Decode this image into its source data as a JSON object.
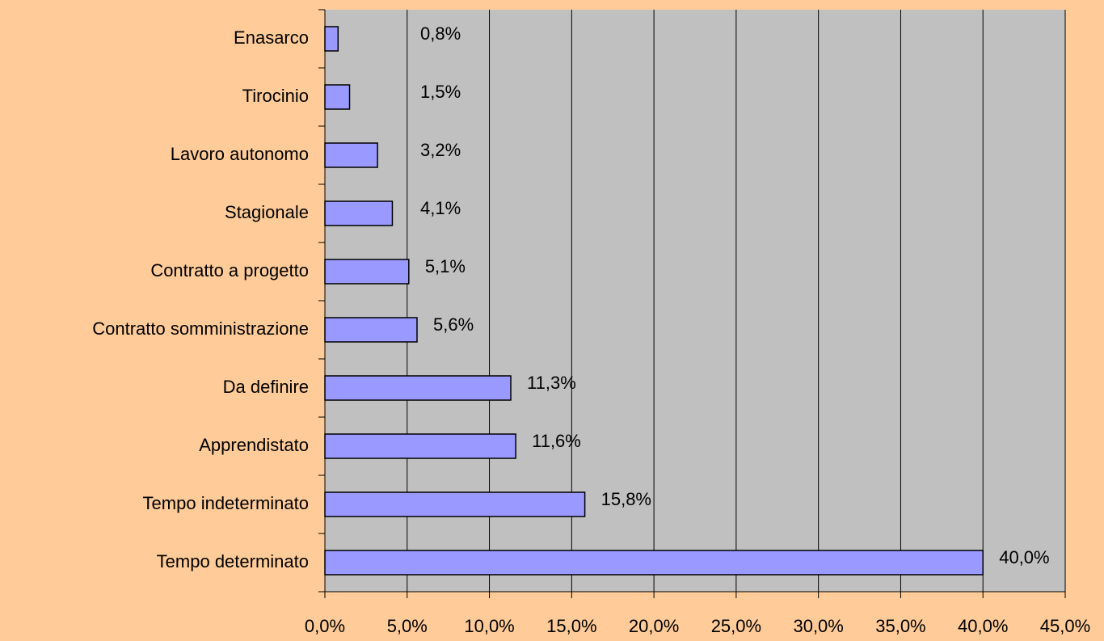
{
  "chart_data": {
    "type": "bar",
    "orientation": "horizontal",
    "categories": [
      "Enasarco",
      "Tirocinio",
      "Lavoro autonomo",
      "Stagionale",
      "Contratto a progetto",
      "Contratto somministrazione",
      "Da definire",
      "Apprendistato",
      "Tempo indeterminato",
      "Tempo determinato"
    ],
    "values": [
      0.8,
      1.5,
      3.2,
      4.1,
      5.1,
      5.6,
      11.3,
      11.6,
      15.8,
      40.0
    ],
    "value_labels": [
      "0,8%",
      "1,5%",
      "3,2%",
      "4,1%",
      "5,1%",
      "5,6%",
      "11,3%",
      "11,6%",
      "15,8%",
      "40,0%"
    ],
    "color": "#9999FF",
    "xlim": [
      0,
      45
    ],
    "xticks": [
      {
        "value": 0,
        "label": "0,0%"
      },
      {
        "value": 5,
        "label": "5,0%"
      },
      {
        "value": 10,
        "label": "10,0%"
      },
      {
        "value": 15,
        "label": "15,0%"
      },
      {
        "value": 20,
        "label": "20,0%"
      },
      {
        "value": 25,
        "label": "25,0%"
      },
      {
        "value": 30,
        "label": "30,0%"
      },
      {
        "value": 35,
        "label": "35,0%"
      },
      {
        "value": 40,
        "label": "40,0%"
      },
      {
        "value": 45,
        "label": "45,0%"
      }
    ],
    "grid": true
  }
}
